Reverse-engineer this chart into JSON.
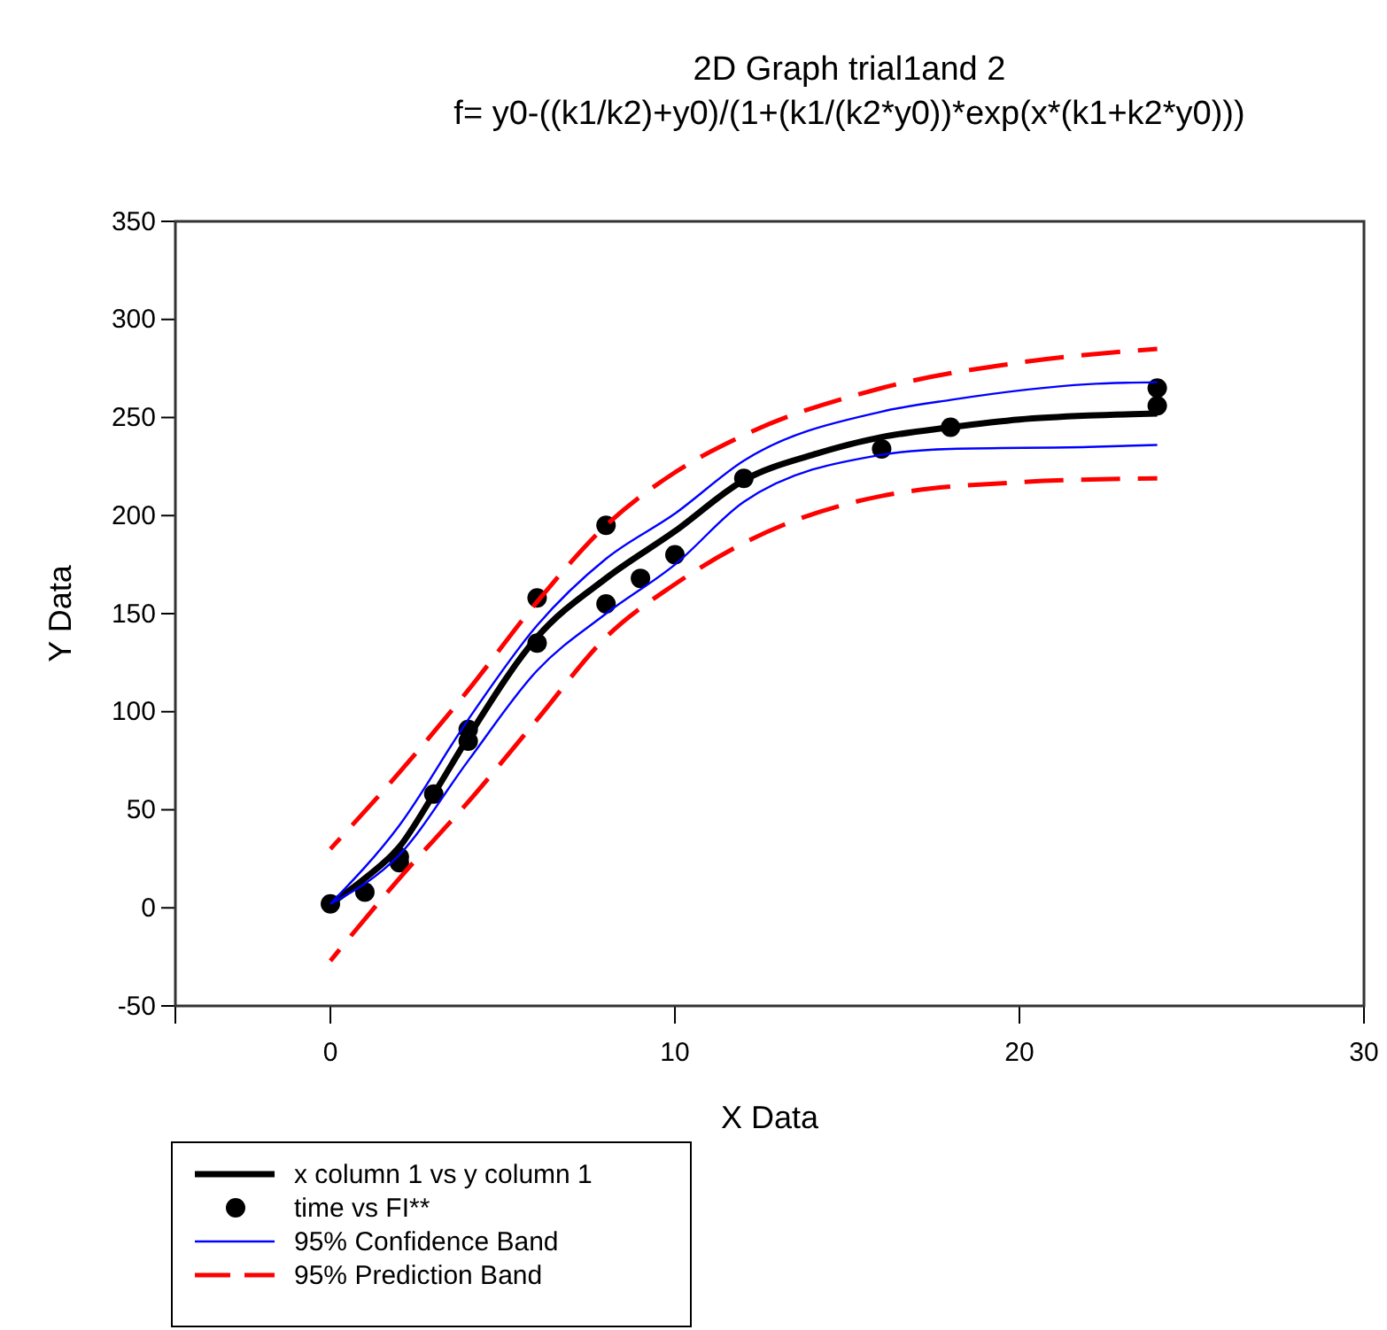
{
  "chart_data": {
    "type": "line",
    "title": "2D Graph trial1and 2",
    "subtitle": "f= y0-((k1/k2)+y0)/(1+(k1/(k2*y0))*exp(x*(k1+k2*y0)))",
    "xlabel": "X Data",
    "ylabel": "Y Data",
    "xlim": [
      -4.5,
      30
    ],
    "xticks": [
      0,
      10,
      20,
      30
    ],
    "ylim": [
      -50,
      350
    ],
    "yticks": [
      -50,
      0,
      50,
      100,
      150,
      200,
      250,
      300,
      350
    ],
    "grid": false,
    "legend": "bottom left",
    "series": [
      {
        "name": "x column 1 vs y column 1",
        "color": "#000000",
        "line_style": "solid",
        "x": [
          0,
          1,
          2,
          3,
          4,
          6,
          8,
          10,
          12,
          14,
          16,
          18,
          20,
          22,
          24
        ],
        "values": [
          2,
          15,
          31,
          58,
          87,
          138,
          168,
          192,
          218,
          231,
          240,
          245,
          249,
          251,
          252
        ]
      },
      {
        "name": "time vs FI**",
        "type": "scatter",
        "marker": "circle",
        "color": "#000000",
        "x": [
          0,
          1,
          2,
          2,
          3,
          4,
          4,
          6,
          6,
          8,
          8,
          9,
          10,
          12,
          16,
          18,
          24,
          24
        ],
        "values": [
          2,
          8,
          26,
          23,
          58,
          91,
          85,
          158,
          135,
          195,
          155,
          168,
          180,
          219,
          234,
          245,
          265,
          256
        ]
      },
      {
        "name": "95% Confidence Band",
        "color": "#0000ff",
        "line_style": "solid",
        "x": [
          0,
          2,
          4,
          6,
          8,
          10,
          12,
          16,
          18,
          22,
          24
        ],
        "values": [
          2,
          42,
          96,
          144,
          178,
          201,
          228,
          253,
          259,
          267,
          268
        ]
      },
      {
        "color": "#0000ff",
        "line_style": "solid",
        "x": [
          0,
          2,
          4,
          6,
          8,
          10,
          12,
          16,
          18,
          22,
          24
        ],
        "values": [
          2,
          27,
          75,
          121,
          150,
          175,
          207,
          231,
          234,
          235,
          236
        ]
      },
      {
        "name": "95% Prediction Band",
        "color": "#ff0000",
        "line_style": "dashed",
        "x": [
          0,
          2,
          4,
          6,
          8,
          10,
          12,
          16,
          20,
          24
        ],
        "values": [
          30,
          69,
          111,
          156,
          195,
          222,
          241,
          265,
          278,
          285
        ]
      },
      {
        "color": "#ff0000",
        "line_style": "dashed",
        "x": [
          0,
          2,
          4,
          6,
          8,
          10,
          12,
          16,
          20,
          24
        ],
        "values": [
          -27,
          15,
          54,
          96,
          138,
          165,
          186,
          210,
          217,
          219
        ]
      }
    ]
  }
}
